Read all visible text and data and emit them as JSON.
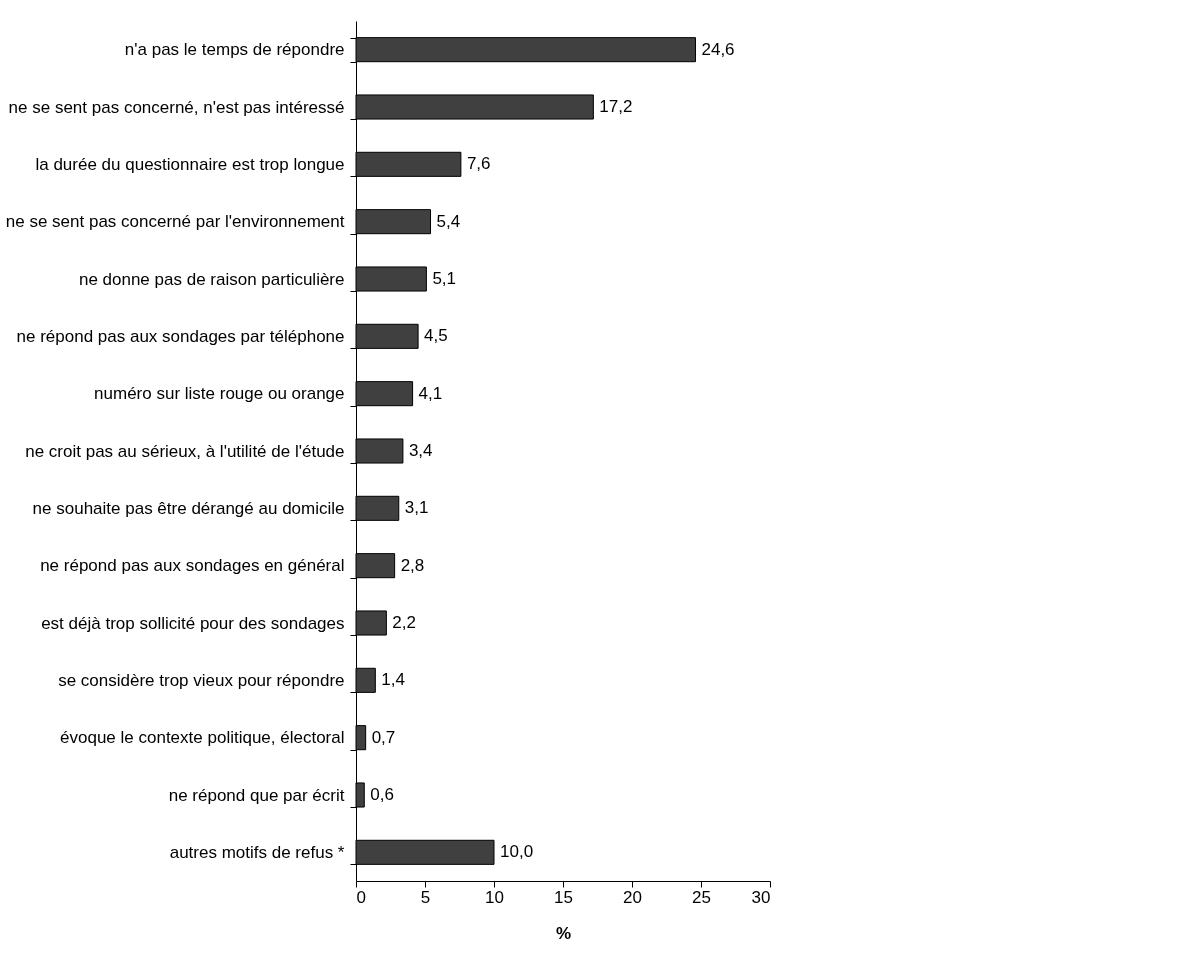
{
  "chart_data": {
    "type": "bar",
    "orientation": "horizontal",
    "xlabel": "%",
    "categories": [
      "n'a pas le temps de répondre",
      "ne se sent pas concerné, n'est pas intéressé",
      "la durée du questionnaire est trop longue",
      "ne se sent pas concerné par l'environnement",
      "ne donne pas de raison particulière",
      "ne répond pas aux sondages par téléphone",
      "numéro sur liste rouge ou orange",
      "ne croit pas au sérieux, à l'utilité de l'étude",
      "ne souhaite pas être dérangé au domicile",
      "ne répond pas aux sondages en général",
      "est déjà trop sollicité pour des sondages",
      "se considère trop vieux pour répondre",
      "évoque le contexte politique, électoral",
      "ne répond que par écrit",
      "autres motifs de refus *"
    ],
    "values": [
      24.6,
      17.2,
      7.6,
      5.4,
      5.1,
      4.5,
      4.1,
      3.4,
      3.1,
      2.8,
      2.2,
      1.4,
      0.7,
      0.6,
      10.0
    ],
    "value_labels": [
      "24,6",
      "17,2",
      "7,6",
      "5,4",
      "5,1",
      "4,5",
      "4,1",
      "3,4",
      "3,1",
      "2,8",
      "2,2",
      "1,4",
      "0,7",
      "0,6",
      "10,0"
    ],
    "color": "#404040",
    "xlim": [
      0,
      30
    ],
    "xticks": [
      0,
      5,
      10,
      15,
      20,
      25,
      30
    ]
  }
}
